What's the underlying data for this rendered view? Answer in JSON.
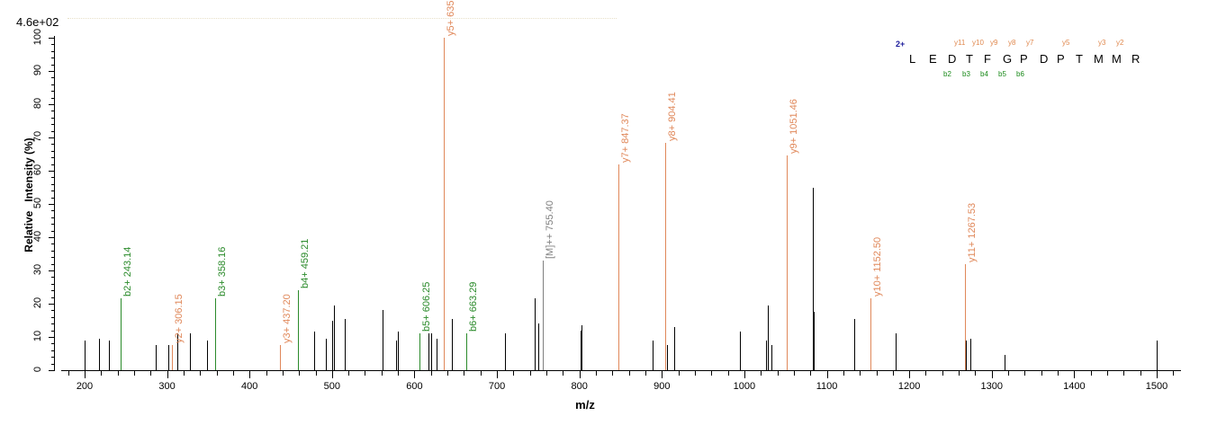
{
  "chart_data": {
    "type": "bar",
    "title": "",
    "scale_label": "4.6e+02",
    "xlabel": "m/z",
    "ylabel": "Relative   Intensity (%)",
    "xlim": [
      172,
      1530
    ],
    "ylim": [
      0,
      100
    ],
    "x_ticks": [
      200,
      300,
      400,
      500,
      600,
      700,
      800,
      900,
      1000,
      1100,
      1200,
      1300,
      1400,
      1500
    ],
    "y_ticks": [
      0,
      10,
      20,
      30,
      40,
      50,
      60,
      70,
      80,
      90,
      100
    ],
    "sequence": {
      "charge": "2+",
      "residues": [
        "L",
        "E",
        "D",
        "T",
        "F",
        "G",
        "P",
        "D",
        "P",
        "T",
        "M",
        "M",
        "R"
      ],
      "y_ions": [
        "y11",
        "y10",
        "y9",
        "y8",
        "y7",
        "y5",
        "y3",
        "y2"
      ],
      "b_ions": [
        "b2",
        "b3",
        "b4",
        "b5",
        "b6"
      ]
    },
    "annotated_peaks": [
      {
        "label": "b2+ 243.14",
        "mz": 243.14,
        "intensity": 21.5,
        "type": "b"
      },
      {
        "label": "y2+ 306.15",
        "mz": 306.15,
        "intensity": 7.5,
        "type": "y"
      },
      {
        "label": "b3+ 358.16",
        "mz": 358.16,
        "intensity": 21.5,
        "type": "b"
      },
      {
        "label": "y3+ 437.20",
        "mz": 437.2,
        "intensity": 7.5,
        "type": "y"
      },
      {
        "label": "b4+ 459.21",
        "mz": 459.21,
        "intensity": 24,
        "type": "b"
      },
      {
        "label": "b5+ 606.25",
        "mz": 606.25,
        "intensity": 11,
        "type": "b"
      },
      {
        "label": "y5+ 635.3",
        "mz": 635.3,
        "intensity": 100,
        "type": "y"
      },
      {
        "label": "b6+ 663.29",
        "mz": 663.29,
        "intensity": 11,
        "type": "b"
      },
      {
        "label": "[M]++ 755.40",
        "mz": 755.4,
        "intensity": 33,
        "type": "m"
      },
      {
        "label": "y7+ 847.37",
        "mz": 847.37,
        "intensity": 62,
        "type": "y"
      },
      {
        "label": "y8+ 904.41",
        "mz": 904.41,
        "intensity": 68.5,
        "type": "y"
      },
      {
        "label": "y9+ 1051.46",
        "mz": 1051.46,
        "intensity": 64.5,
        "type": "y"
      },
      {
        "label": "y10+ 1152.50",
        "mz": 1152.5,
        "intensity": 21.5,
        "type": "y"
      },
      {
        "label": "y11+ 1267.53",
        "mz": 1267.53,
        "intensity": 32,
        "type": "y"
      }
    ],
    "unannotated_peaks": [
      {
        "mz": 200,
        "intensity": 9
      },
      {
        "mz": 217,
        "intensity": 9.5
      },
      {
        "mz": 229,
        "intensity": 9
      },
      {
        "mz": 286,
        "intensity": 7.5
      },
      {
        "mz": 302,
        "intensity": 7.5
      },
      {
        "mz": 312,
        "intensity": 11
      },
      {
        "mz": 328,
        "intensity": 11
      },
      {
        "mz": 348,
        "intensity": 9
      },
      {
        "mz": 478,
        "intensity": 11.5
      },
      {
        "mz": 493,
        "intensity": 9.5
      },
      {
        "mz": 500,
        "intensity": 15
      },
      {
        "mz": 502,
        "intensity": 19.5
      },
      {
        "mz": 515,
        "intensity": 15.5
      },
      {
        "mz": 561,
        "intensity": 18
      },
      {
        "mz": 578,
        "intensity": 9
      },
      {
        "mz": 580,
        "intensity": 11.5
      },
      {
        "mz": 617,
        "intensity": 11
      },
      {
        "mz": 620,
        "intensity": 11
      },
      {
        "mz": 627,
        "intensity": 9.5
      },
      {
        "mz": 645,
        "intensity": 15.5
      },
      {
        "mz": 710,
        "intensity": 11
      },
      {
        "mz": 746,
        "intensity": 21.5
      },
      {
        "mz": 750,
        "intensity": 14
      },
      {
        "mz": 801,
        "intensity": 12
      },
      {
        "mz": 802,
        "intensity": 13.5
      },
      {
        "mz": 889,
        "intensity": 9
      },
      {
        "mz": 906,
        "intensity": 7.5
      },
      {
        "mz": 915,
        "intensity": 13
      },
      {
        "mz": 995,
        "intensity": 11.5
      },
      {
        "mz": 1026,
        "intensity": 9
      },
      {
        "mz": 1028,
        "intensity": 19.5
      },
      {
        "mz": 1033,
        "intensity": 7.5
      },
      {
        "mz": 1083,
        "intensity": 55
      },
      {
        "mz": 1084,
        "intensity": 17.5
      },
      {
        "mz": 1133,
        "intensity": 15.5
      },
      {
        "mz": 1184,
        "intensity": 11
      },
      {
        "mz": 1269,
        "intensity": 9
      },
      {
        "mz": 1274,
        "intensity": 9.5
      },
      {
        "mz": 1316,
        "intensity": 4.5
      },
      {
        "mz": 1500,
        "intensity": 9
      }
    ],
    "colors": {
      "b": "#2a8a2a",
      "y": "#e0885a",
      "m": "#808080",
      "other": "#000000"
    },
    "grid": false,
    "legend": "none"
  }
}
